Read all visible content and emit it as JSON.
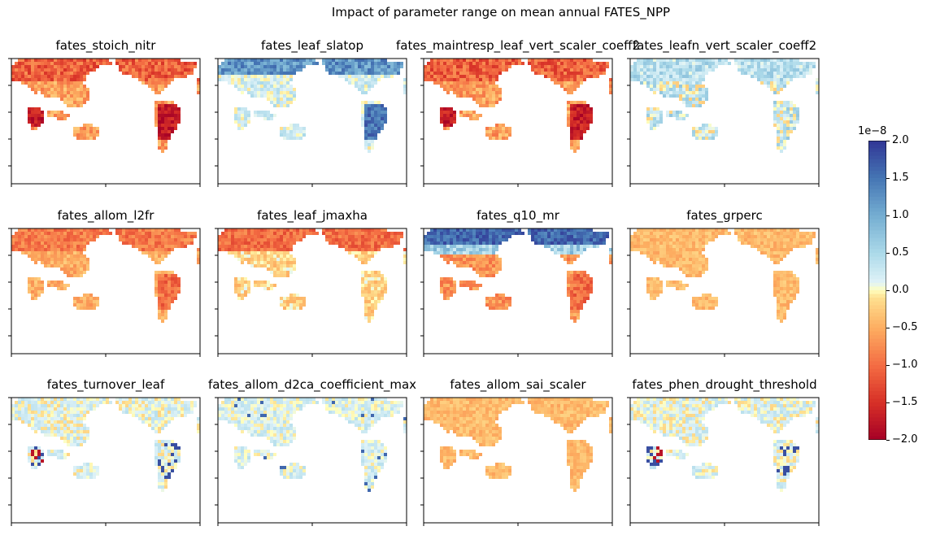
{
  "chart_data": {
    "type": "heatmap",
    "title": "Impact of parameter range on mean annual FATES_NPP",
    "panels": [
      {
        "name": "fates_stoich_nitr",
        "pattern": "strong-negative"
      },
      {
        "name": "fates_leaf_slatop",
        "pattern": "positive-north-tropics"
      },
      {
        "name": "fates_maintresp_leaf_vert_scaler_coeff2",
        "pattern": "strong-negative"
      },
      {
        "name": "fates_leafn_vert_scaler_coeff2",
        "pattern": "mild-positive"
      },
      {
        "name": "fates_allom_l2fr",
        "pattern": "negative"
      },
      {
        "name": "fates_leaf_jmaxha",
        "pattern": "negative-north"
      },
      {
        "name": "fates_q10_mr",
        "pattern": "positive-north"
      },
      {
        "name": "fates_grperc",
        "pattern": "mild-negative"
      },
      {
        "name": "fates_turnover_leaf",
        "pattern": "mixed"
      },
      {
        "name": "fates_allom_d2ca_coefficient_max",
        "pattern": "mixed-mild"
      },
      {
        "name": "fates_allom_sai_scaler",
        "pattern": "mild-negative"
      },
      {
        "name": "fates_phen_drought_threshold",
        "pattern": "mixed"
      }
    ],
    "colorbar": {
      "colormap": "RdYlBu",
      "vmin": -2.0,
      "vmax": 2.0,
      "exponent_label": "1e−8",
      "ticks": [
        "−2.0",
        "−1.5",
        "−1.0",
        "−0.5",
        "0.0",
        "0.5",
        "1.0",
        "1.5",
        "2.0"
      ],
      "tick_values": [
        -2.0,
        -1.5,
        -1.0,
        -0.5,
        0.0,
        0.5,
        1.0,
        1.5,
        2.0
      ]
    }
  }
}
